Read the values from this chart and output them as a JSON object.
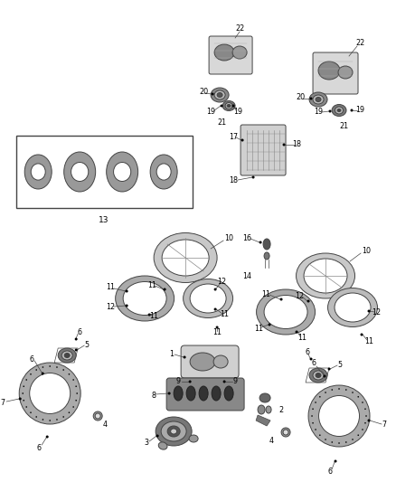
{
  "bg_color": "#ffffff",
  "fig_width": 4.38,
  "fig_height": 5.33,
  "dpi": 100,
  "ec": "#444444",
  "lw": 0.7,
  "label_size": 5.8
}
